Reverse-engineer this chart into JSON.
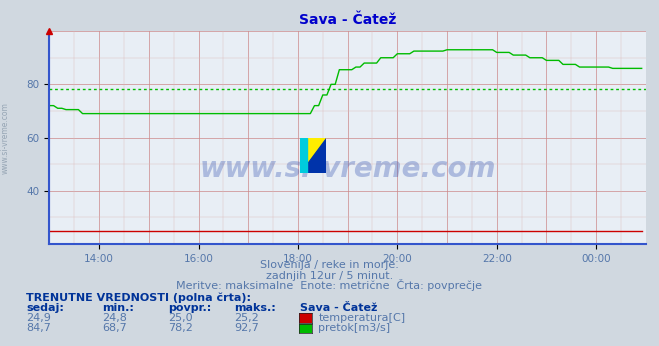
{
  "title": "Sava - Čatež",
  "title_color": "#0000cc",
  "bg_color": "#d0d8e0",
  "plot_bg_color": "#e8eef5",
  "grid_color_major_x": "#cc8888",
  "grid_color_major_y": "#cc8888",
  "grid_color_minor_x": "#ddbbbb",
  "grid_color_minor_y": "#ddbbbb",
  "xlim": [
    0,
    144
  ],
  "ylim": [
    20,
    100
  ],
  "yticks": [
    40,
    60,
    80
  ],
  "xtick_pos": [
    12,
    36,
    60,
    84,
    108,
    132,
    144
  ],
  "xtick_labels": [
    "14:00",
    "16:00",
    "18:00",
    "20:00",
    "22:00",
    "00:00",
    ""
  ],
  "watermark": "www.si-vreme.com",
  "sub1": "Slovenija / reke in morje.",
  "sub2": "zadnjih 12ur / 5 minut.",
  "sub3": "Meritve: maksimalne  Enote: metrične  Črta: povprečje",
  "label_trenutne": "TRENUTNE VREDNOSTI (polna črta):",
  "col_headers": [
    "sedaj:",
    "min.:",
    "povpr.:",
    "maks.:",
    "Sava - Čatež"
  ],
  "row1": [
    "24,9",
    "24,8",
    "25,0",
    "25,2",
    "temperatura[C]"
  ],
  "row2": [
    "84,7",
    "68,7",
    "78,2",
    "92,7",
    "pretok[m3/s]"
  ],
  "temp_color": "#cc0000",
  "flow_color": "#00bb00",
  "avg_flow_value": 78.2,
  "avg_temp_value": 25.0,
  "sidebar_text": "www.si-vreme.com",
  "sidebar_color": "#8899aa",
  "text_color": "#5577aa",
  "header_color": "#003399",
  "logo_colors": [
    "#ffee00",
    "#0033aa",
    "#00ccdd"
  ]
}
